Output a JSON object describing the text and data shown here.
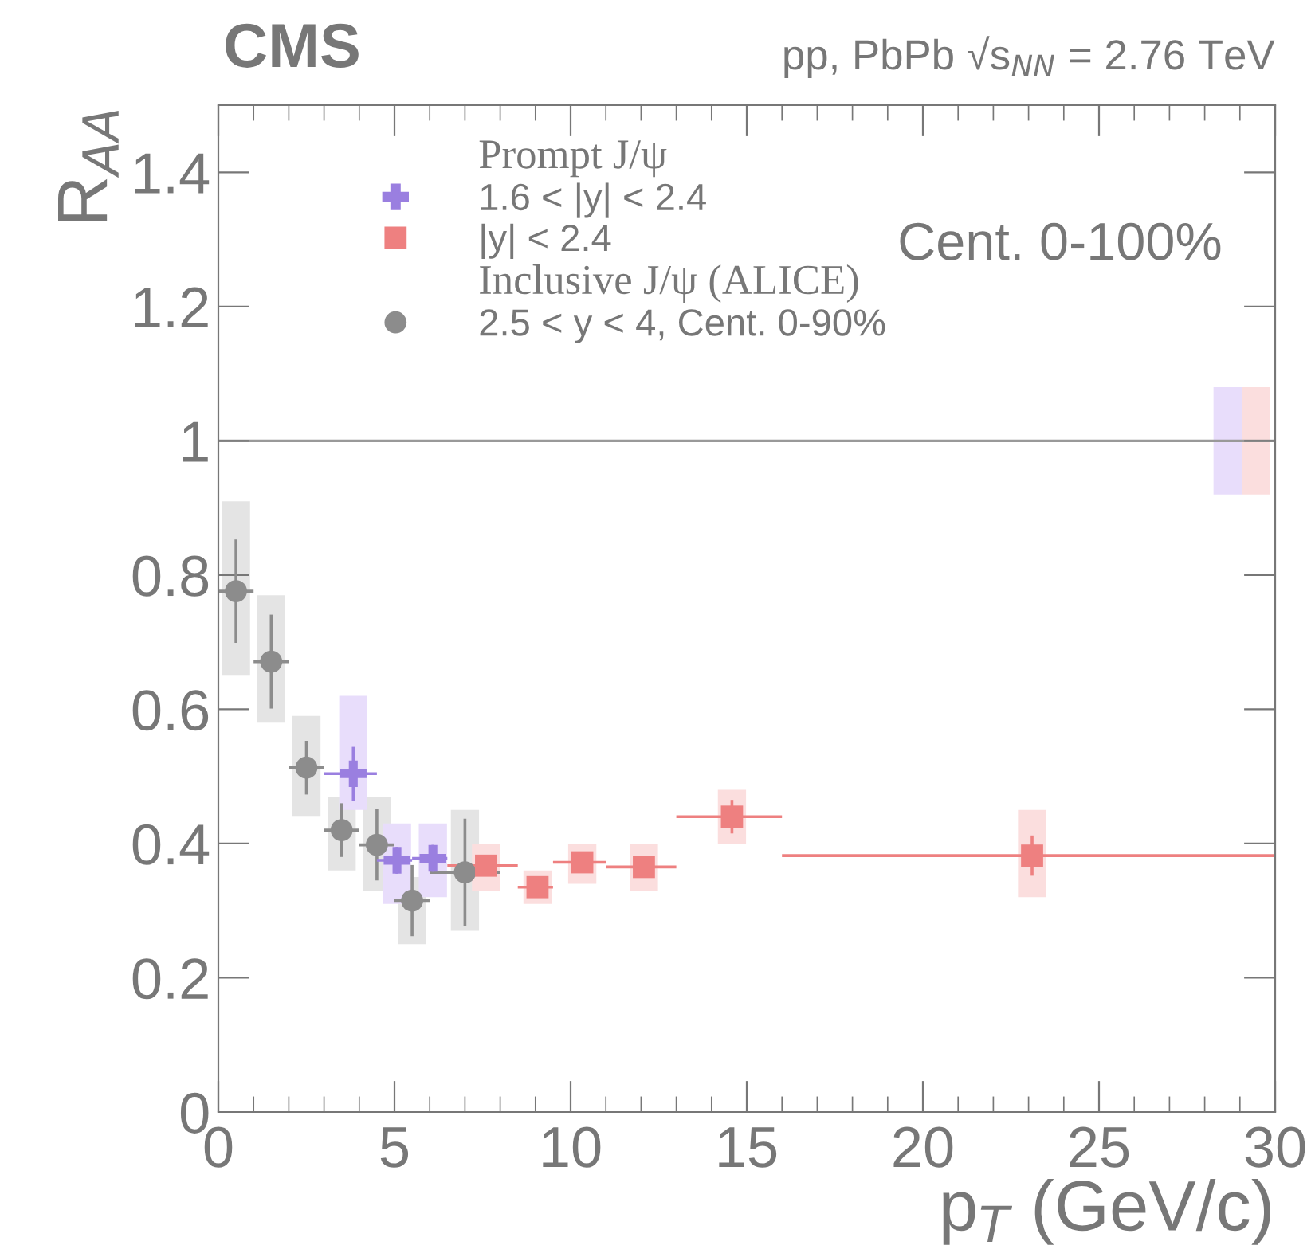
{
  "chart_data": {
    "type": "scatter",
    "title": "CMS",
    "subtitle": "pp, PbPb √s$_{NN}$ = 2.76 TeV",
    "xlabel": "p$_{T}$ (GeV/c)",
    "ylabel": "R$_{AA}$",
    "annotations": [
      "Prompt J/ψ",
      "Inclusive J/ψ (ALICE)",
      "Cent. 0-100%"
    ],
    "xlim": [
      0,
      30
    ],
    "xticks": [
      0,
      5,
      10,
      15,
      20,
      25,
      30
    ],
    "ylim": [
      0,
      1.5
    ],
    "yticks": [
      0,
      0.2,
      0.4,
      0.6,
      0.8,
      1,
      1.2,
      1.4
    ],
    "grid": false,
    "legend": "top left",
    "ref_lines": [
      {
        "axis": "y",
        "value": 1,
        "color": "#999999"
      }
    ],
    "series": [
      {
        "type": "bar",
        "color": "#e4e4e4",
        "x": [
          0.5,
          1.5,
          2.5,
          3.5,
          4.5,
          5.5,
          7
        ],
        "base": [
          0.65,
          0.58,
          0.44,
          0.36,
          0.33,
          0.25,
          0.27
        ],
        "values": [
          0.26,
          0.19,
          0.15,
          0.11,
          0.14,
          0.1,
          0.18
        ]
      },
      {
        "type": "bar",
        "color": "#e8ddfb",
        "x": [
          3.83,
          5.07,
          6.09,
          28.65
        ],
        "base": [
          0.45,
          0.31,
          0.32,
          0.92
        ],
        "values": [
          0.17,
          0.12,
          0.11,
          0.16
        ]
      },
      {
        "type": "bar",
        "color": "#fbdede",
        "x": [
          7.6,
          9.06,
          10.33,
          12.08,
          14.58,
          23.1,
          29.45
        ],
        "base": [
          0.33,
          0.31,
          0.34,
          0.33,
          0.4,
          0.32,
          0.92
        ],
        "values": [
          0.07,
          0.05,
          0.06,
          0.07,
          0.08,
          0.13,
          0.16
        ]
      },
      {
        "name": "2.5 < y < 4, Cent. 0-90%",
        "marker": "circle",
        "color": "#8c8c8c",
        "x": [
          0.5,
          1.5,
          2.5,
          3.5,
          4.5,
          5.5,
          7
        ],
        "values": [
          0.776,
          0.671,
          0.513,
          0.42,
          0.398,
          0.315,
          0.357
        ],
        "errors": [
          0.077,
          0.07,
          0.04,
          0.04,
          0.053,
          0.053,
          0.08
        ],
        "xerrors": [
          0.5,
          0.5,
          0.5,
          0.5,
          0.5,
          0.5,
          1
        ]
      },
      {
        "name": "1.6 < |y| < 2.4",
        "marker": "cross",
        "color": "#9a7fe0",
        "x": [
          3.83,
          5.07,
          6.09
        ],
        "values": [
          0.504,
          0.375,
          0.378
        ],
        "errors": [
          0.04,
          0.02,
          0.02
        ],
        "xerrors": [
          [
            3.0,
            4.5
          ],
          [
            4.5,
            5.5
          ],
          [
            5.5,
            6.5
          ]
        ]
      },
      {
        "name": "|y| < 2.4",
        "marker": "square",
        "color": "#ee8080",
        "x": [
          7.6,
          9.06,
          10.33,
          12.08,
          14.58,
          23.1
        ],
        "values": [
          0.367,
          0.335,
          0.372,
          0.365,
          0.44,
          0.382
        ],
        "errors": [
          0.015,
          0.015,
          0.015,
          0.015,
          0.025,
          0.03
        ],
        "xerrors": [
          [
            6.5,
            8.5
          ],
          [
            8.5,
            9.5
          ],
          [
            9.5,
            11
          ],
          [
            11,
            13
          ],
          [
            13,
            16
          ],
          [
            16,
            30
          ]
        ]
      }
    ]
  }
}
